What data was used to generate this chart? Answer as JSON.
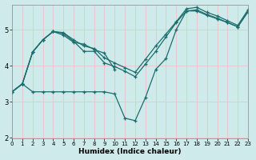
{
  "xlabel": "Humidex (Indice chaleur)",
  "background_color": "#ceeaea",
  "line_color": "#1a6e6e",
  "grid_color": "#e8c8c8",
  "xlim": [
    0,
    23
  ],
  "ylim": [
    2.0,
    5.7
  ],
  "yticks": [
    2,
    3,
    4,
    5
  ],
  "xticks": [
    0,
    1,
    2,
    3,
    4,
    5,
    6,
    7,
    8,
    9,
    10,
    11,
    12,
    13,
    14,
    15,
    16,
    17,
    18,
    19,
    20,
    21,
    22,
    23
  ],
  "series1_x": [
    0,
    1,
    2,
    3,
    4,
    5,
    6,
    7,
    8,
    9,
    10,
    11,
    12,
    13,
    14,
    15,
    16,
    17,
    18,
    19,
    20,
    21,
    22,
    23
  ],
  "series1_y": [
    3.28,
    3.5,
    3.28,
    3.28,
    3.28,
    3.28,
    3.28,
    3.28,
    3.28,
    3.28,
    3.22,
    2.55,
    2.48,
    3.12,
    3.9,
    4.2,
    5.0,
    5.52,
    5.52,
    5.4,
    5.3,
    5.2,
    5.08,
    5.5
  ],
  "series2_x": [
    0,
    1,
    2,
    3,
    4,
    5,
    6,
    7,
    8,
    9,
    10
  ],
  "series2_y": [
    3.28,
    3.5,
    4.38,
    4.72,
    4.95,
    4.85,
    4.65,
    4.6,
    4.45,
    4.35,
    3.9
  ],
  "series3_x": [
    0,
    1,
    2,
    3,
    4,
    5,
    6,
    7,
    8,
    9,
    10,
    11,
    12,
    13,
    14,
    15,
    16,
    17,
    18,
    19,
    20,
    21,
    22,
    23
  ],
  "series3_y": [
    3.28,
    3.5,
    4.38,
    4.72,
    4.95,
    4.9,
    4.68,
    4.4,
    4.4,
    4.08,
    3.98,
    3.85,
    3.7,
    4.05,
    4.4,
    4.8,
    5.2,
    5.52,
    5.55,
    5.42,
    5.32,
    5.2,
    5.08,
    5.5
  ],
  "series4_x": [
    0,
    1,
    2,
    3,
    4,
    5,
    6,
    7,
    8,
    9,
    10,
    11,
    12,
    13,
    14,
    15,
    16,
    17,
    18,
    19,
    20,
    21,
    22,
    23
  ],
  "series4_y": [
    3.28,
    3.5,
    4.38,
    4.72,
    4.95,
    4.92,
    4.72,
    4.55,
    4.48,
    4.22,
    4.08,
    3.95,
    3.82,
    4.18,
    4.55,
    4.88,
    5.22,
    5.58,
    5.62,
    5.48,
    5.38,
    5.25,
    5.12,
    5.55
  ]
}
